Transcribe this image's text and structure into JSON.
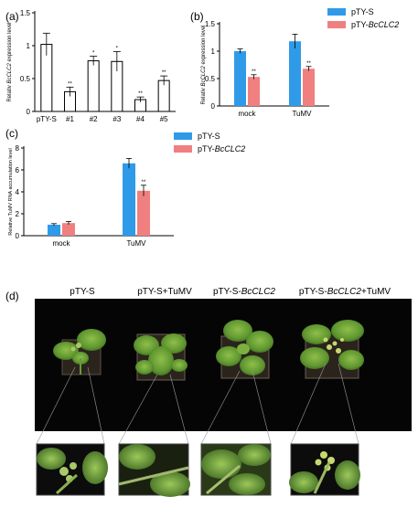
{
  "chart_data": [
    {
      "panel": "(a)",
      "type": "bar",
      "ylabel": "Relativ BcCLC2 expression level",
      "categories": [
        "pTY-S",
        "#1",
        "#2",
        "#3",
        "#4",
        "#5"
      ],
      "values": [
        1.02,
        0.3,
        0.77,
        0.76,
        0.18,
        0.47
      ],
      "errors": [
        0.17,
        0.07,
        0.07,
        0.15,
        0.04,
        0.07
      ],
      "significance": [
        "",
        "**",
        "*",
        "*",
        "**",
        "**"
      ],
      "ylim": [
        0,
        1.5
      ],
      "yticks": [
        "0",
        "0.5",
        "1",
        "1.5"
      ],
      "colors": {
        "fill": "#ffffff",
        "stroke": "#000000"
      }
    },
    {
      "panel": "(b)",
      "type": "bar",
      "ylabel": "Relativ BcCLC2 expression level",
      "categories": [
        "mock",
        "TuMV"
      ],
      "series": [
        {
          "name": "pTY-S",
          "values": [
            1.0,
            1.18
          ],
          "errors": [
            0.04,
            0.13
          ],
          "significance": [
            "",
            ""
          ],
          "color": "#2f9be8"
        },
        {
          "name": "pTY-BcCLC2",
          "values": [
            0.53,
            0.68
          ],
          "errors": [
            0.04,
            0.04
          ],
          "significance": [
            "**",
            "**"
          ],
          "color": "#f08080"
        }
      ],
      "ylim": [
        0,
        1.5
      ],
      "yticks": [
        "0",
        "0.5",
        "1",
        "1.5"
      ],
      "legend": "right"
    },
    {
      "panel": "(c)",
      "type": "bar",
      "ylabel": "Relative TuMV RNA accumulation level",
      "categories": [
        "mock",
        "TuMV"
      ],
      "series": [
        {
          "name": "pTY-S",
          "values": [
            1.0,
            6.6
          ],
          "errors": [
            0.1,
            0.45
          ],
          "significance": [
            "",
            ""
          ],
          "color": "#2f9be8"
        },
        {
          "name": "pTY-BcCLC2",
          "values": [
            1.15,
            4.1
          ],
          "errors": [
            0.15,
            0.5
          ],
          "significance": [
            "",
            "**"
          ],
          "color": "#f08080"
        }
      ],
      "ylim": [
        0,
        8
      ],
      "yticks": [
        "0",
        "2",
        "4",
        "6",
        "8"
      ],
      "legend": "top-right"
    }
  ],
  "photos": {
    "panel": "(d)",
    "titles": [
      "pTY-S",
      "pTY-S+TuMV",
      "pTY-S-BcCLC2",
      "pTY-S-BcCLC2+TuMV"
    ]
  }
}
